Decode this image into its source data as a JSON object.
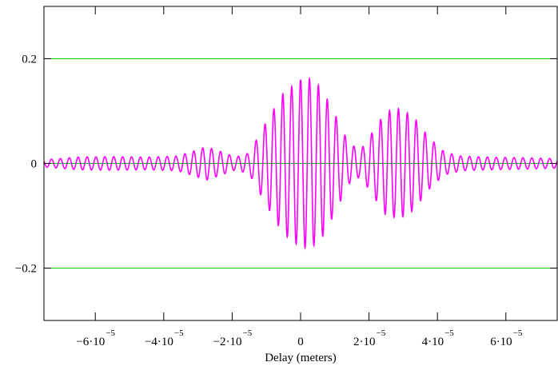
{
  "chart_data": {
    "type": "line",
    "title": "",
    "xlabel": "Delay (meters)",
    "ylabel": "",
    "xlim": [
      -7.5e-05,
      7.5e-05
    ],
    "ylim": [
      -0.3,
      0.3
    ],
    "x_ticks": [
      {
        "value": -6e-05,
        "mantissa": "−6·10",
        "exp": "−5"
      },
      {
        "value": -4e-05,
        "mantissa": "−4·10",
        "exp": "−5"
      },
      {
        "value": -2e-05,
        "mantissa": "−2·10",
        "exp": "−5"
      },
      {
        "value": 0,
        "mantissa": "0",
        "exp": ""
      },
      {
        "value": 2e-05,
        "mantissa": "2·10",
        "exp": "−5"
      },
      {
        "value": 4e-05,
        "mantissa": "4·10",
        "exp": "−5"
      },
      {
        "value": 6e-05,
        "mantissa": "6·10",
        "exp": "−5"
      }
    ],
    "y_ticks": [
      {
        "value": 0.2,
        "label": "0.2"
      },
      {
        "value": 0,
        "label": "0"
      },
      {
        "value": -0.2,
        "label": "−0.2"
      }
    ],
    "reference_lines": [
      {
        "y": 0.2,
        "color": "#00cc00"
      },
      {
        "y": 0,
        "color": "#00cc00"
      },
      {
        "y": -0.2,
        "color": "#00cc00"
      }
    ],
    "series": [
      {
        "color": "#ff00ff",
        "carrier_period": 2.6e-06,
        "envelope_points": [
          [
            -7.5e-05,
            0.007
          ],
          [
            -6.5e-05,
            0.012
          ],
          [
            -5.5e-05,
            0.013
          ],
          [
            -4.5e-05,
            0.012
          ],
          [
            -3.6e-05,
            0.014
          ],
          [
            -3.2e-05,
            0.022
          ],
          [
            -2.75e-05,
            0.032
          ],
          [
            -2.3e-05,
            0.022
          ],
          [
            -1.9e-05,
            0.012
          ],
          [
            -1.5e-05,
            0.02
          ],
          [
            -1e-05,
            0.08
          ],
          [
            -5e-06,
            0.135
          ],
          [
            0,
            0.16
          ],
          [
            3e-06,
            0.162
          ],
          [
            6e-06,
            0.145
          ],
          [
            1e-05,
            0.095
          ],
          [
            1.4e-05,
            0.04
          ],
          [
            1.75e-05,
            0.025
          ],
          [
            2.1e-05,
            0.06
          ],
          [
            2.5e-05,
            0.1
          ],
          [
            2.9e-05,
            0.105
          ],
          [
            3.3e-05,
            0.09
          ],
          [
            3.75e-05,
            0.05
          ],
          [
            4.2e-05,
            0.022
          ],
          [
            4.7e-05,
            0.014
          ],
          [
            5.5e-05,
            0.012
          ],
          [
            6.5e-05,
            0.011
          ],
          [
            7.5e-05,
            0.009
          ]
        ]
      }
    ]
  }
}
